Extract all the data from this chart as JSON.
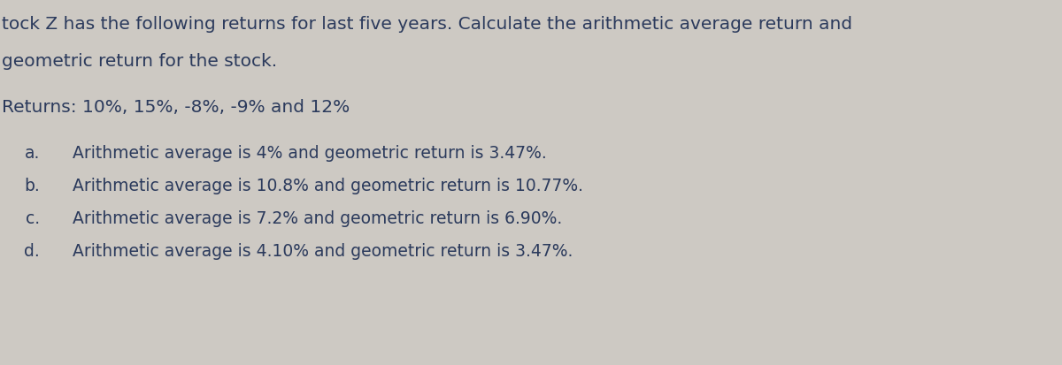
{
  "background_color": "#cdc9c3",
  "title_line1": "tock Z has the following returns for last five years. Calculate the arithmetic average return and",
  "title_line2": "geometric return for the stock.",
  "returns_line": "Returns: 10%, 15%, -8%, -9% and 12%",
  "options": [
    {
      "label": "a.",
      "text": "Arithmetic average is 4% and geometric return is 3.47%."
    },
    {
      "label": "b.",
      "text": "Arithmetic average is 10.8% and geometric return is 10.77%."
    },
    {
      "label": "c.",
      "text": "Arithmetic average is 7.2% and geometric return is 6.90%."
    },
    {
      "label": "d.",
      "text": "Arithmetic average is 4.10% and geometric return is 3.47%."
    }
  ],
  "text_color": "#2b3a5c",
  "title_fontsize": 14.5,
  "returns_fontsize": 14.5,
  "option_fontsize": 13.5,
  "figsize": [
    12.0,
    4.13
  ],
  "dpi": 100
}
